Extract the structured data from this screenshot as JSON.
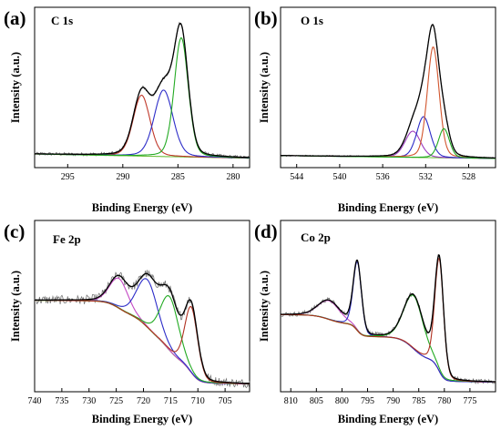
{
  "chart_data": [
    {
      "type": "line",
      "panel_label": "(a)",
      "title": "C 1s",
      "xlabel": "Binding Energy (eV)",
      "ylabel": "Intensity (a.u.)",
      "xlim": [
        298,
        278.5
      ],
      "xticks": [
        295,
        290,
        285,
        280
      ],
      "ylim": [
        0,
        1
      ],
      "baseline": {
        "left": 0.085,
        "right": 0.055
      },
      "peaks": [
        {
          "center": 288.3,
          "amplitude": 0.44,
          "fwhm": 1.8,
          "color": "#c0392b"
        },
        {
          "center": 286.3,
          "amplitude": 0.48,
          "fwhm": 2.0,
          "color": "#2c2cc8"
        },
        {
          "center": 284.7,
          "amplitude": 0.86,
          "fwhm": 1.5,
          "color": "#22aa22"
        }
      ],
      "noise": 0.012,
      "envelope_color": "#000000",
      "raw_color": "#777777",
      "baseline_color": "#6fbf3f"
    },
    {
      "type": "line",
      "panel_label": "(b)",
      "title": "O 1s",
      "xlabel": "Binding Energy (eV)",
      "ylabel": "Intensity (a.u.)",
      "xlim": [
        545.5,
        525.5
      ],
      "xticks": [
        544,
        540,
        536,
        532,
        528
      ],
      "ylim": [
        0,
        1
      ],
      "baseline": {
        "left": 0.07,
        "right": 0.05
      },
      "peaks": [
        {
          "center": 533.2,
          "amplitude": 0.18,
          "fwhm": 1.7,
          "color": "#9b3bbf"
        },
        {
          "center": 532.2,
          "amplitude": 0.28,
          "fwhm": 1.5,
          "color": "#2c2cc8"
        },
        {
          "center": 531.3,
          "amplitude": 0.76,
          "fwhm": 1.3,
          "color": "#d2552d"
        },
        {
          "center": 530.3,
          "amplitude": 0.2,
          "fwhm": 1.2,
          "color": "#22aa22"
        }
      ],
      "noise": 0.005,
      "envelope_color": "#000000",
      "raw_color": "#777777",
      "baseline_color": "#6fbf3f"
    },
    {
      "type": "line",
      "panel_label": "(c)",
      "title": "Fe 2p",
      "xlabel": "Binding Energy (eV)",
      "ylabel": "Intensity (a.u.)",
      "xlim": [
        740,
        700.5
      ],
      "xticks": [
        740,
        735,
        730,
        725,
        720,
        715,
        710,
        705
      ],
      "ylim": [
        0,
        1
      ],
      "baseline": {
        "left": 0.6,
        "right": 0.04,
        "shape": "shirley"
      },
      "peaks": [
        {
          "center": 724.5,
          "amplitude": 0.2,
          "fwhm": 4.0,
          "color": "#c44ac4"
        },
        {
          "center": 719.3,
          "amplitude": 0.32,
          "fwhm": 4.5,
          "color": "#2c2cc8"
        },
        {
          "center": 715.2,
          "amplitude": 0.36,
          "fwhm": 4.0,
          "color": "#22aa22"
        },
        {
          "center": 711.2,
          "amplitude": 0.44,
          "fwhm": 2.8,
          "color": "#b03020"
        }
      ],
      "noise": 0.03,
      "envelope_color": "#000000",
      "raw_color": "#777777",
      "baseline_color": "#6fbf3f"
    },
    {
      "type": "line",
      "panel_label": "(d)",
      "title": "Co 2p",
      "xlabel": "Binding Energy (eV)",
      "ylabel": "Intensity (a.u.)",
      "xlim": [
        812,
        770
      ],
      "xticks": [
        810,
        805,
        800,
        795,
        790,
        785,
        780,
        775
      ],
      "ylim": [
        0,
        1
      ],
      "baseline": {
        "left": 0.48,
        "right": 0.05,
        "shape": "shirley"
      },
      "peaks": [
        {
          "center": 802.5,
          "amplitude": 0.12,
          "fwhm": 5.0,
          "color": "#c44ac4"
        },
        {
          "center": 797.0,
          "amplitude": 0.44,
          "fwhm": 1.9,
          "color": "#2c2cc8"
        },
        {
          "center": 786.0,
          "amplitude": 0.34,
          "fwhm": 4.5,
          "color": "#22aa22"
        },
        {
          "center": 781.0,
          "amplitude": 0.72,
          "fwhm": 2.0,
          "color": "#b03020"
        }
      ],
      "noise": 0.015,
      "envelope_color": "#000000",
      "raw_color": "#777777",
      "baseline_color": "#6fbf3f"
    }
  ]
}
